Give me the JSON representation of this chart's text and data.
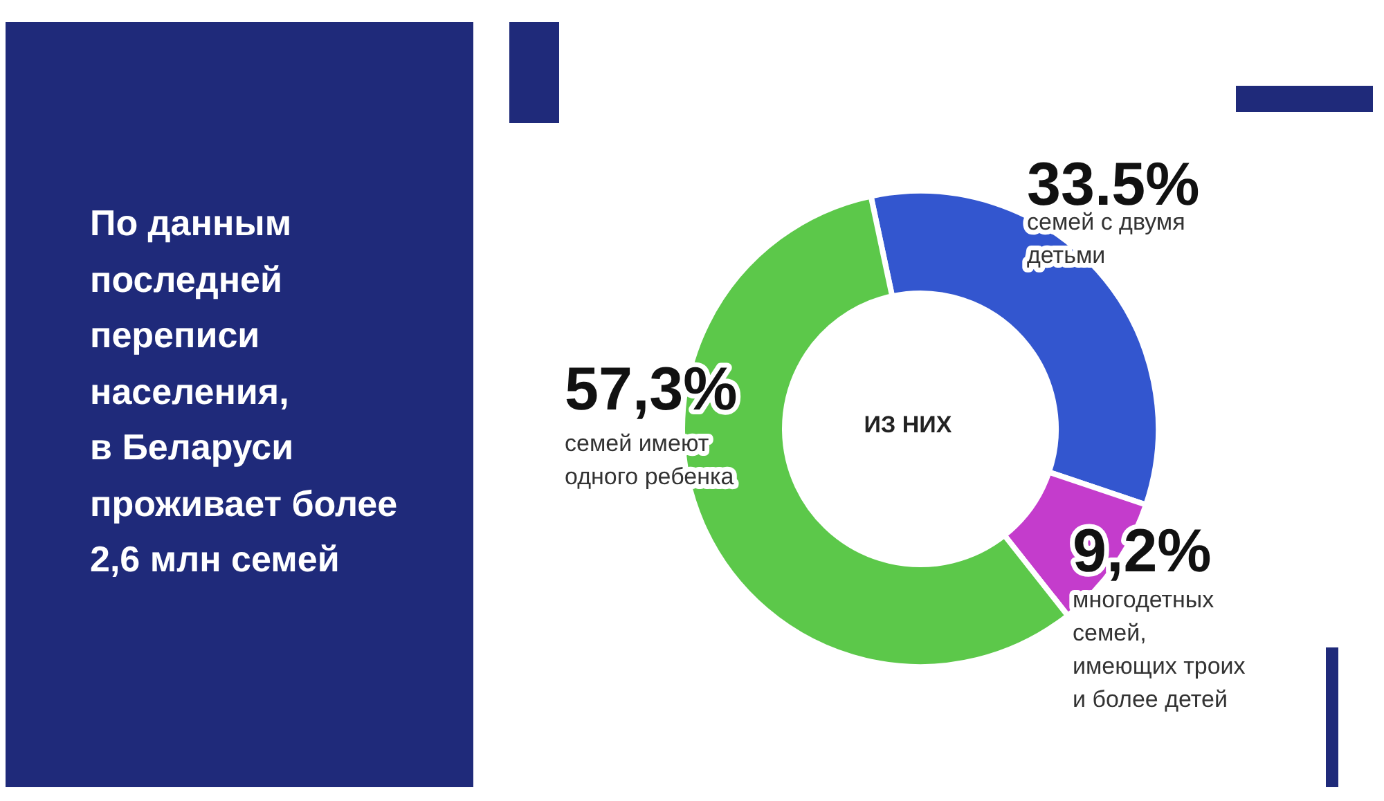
{
  "chart_data": {
    "type": "donut",
    "title": "По данным\nпоследней\nпереписи\nнаселения,\nв Беларуси\nпроживает более\n2,6 млн семей",
    "annotations": [
      "ИЗ НИХ"
    ],
    "categories": [
      "семей с двумя\nдетьми",
      "многодетных\nсемей,\nимеющих троих\nи более детей",
      "семей имеют\nодного ребенка"
    ],
    "values": [
      33.5,
      9.2,
      57.3
    ],
    "colors": [
      "#3356cf",
      "#c43ccc",
      "#5cc84a"
    ],
    "value_labels": [
      "33.5%",
      "9,2%",
      "57,3%"
    ]
  }
}
